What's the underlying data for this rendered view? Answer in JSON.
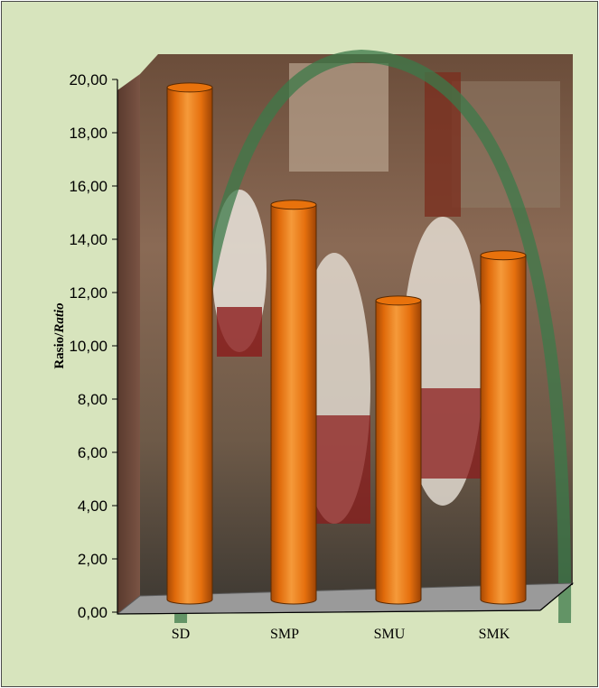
{
  "chart_data": {
    "type": "bar",
    "categories": [
      "SD",
      "SMP",
      "SMU",
      "SMK"
    ],
    "values": [
      19.8,
      15.4,
      11.8,
      13.5
    ],
    "ylabel": "Rasio/Ratio",
    "ylabel_main": "Rasio/",
    "ylabel_italic": "Ratio",
    "xlabel": "",
    "ylim": [
      0,
      20
    ],
    "yticks": [
      "0,00",
      "2,00",
      "4,00",
      "6,00",
      "8,00",
      "10,00",
      "12,00",
      "14,00",
      "16,00",
      "18,00",
      "20,00"
    ],
    "grid": false,
    "legend": "none",
    "bar_style": "3d-cylinder",
    "bar_color": "#e8720c",
    "floor_color": "#9a9a9a",
    "background_color": "#d7e4bd",
    "backdrop": "photo-schoolchildren"
  }
}
